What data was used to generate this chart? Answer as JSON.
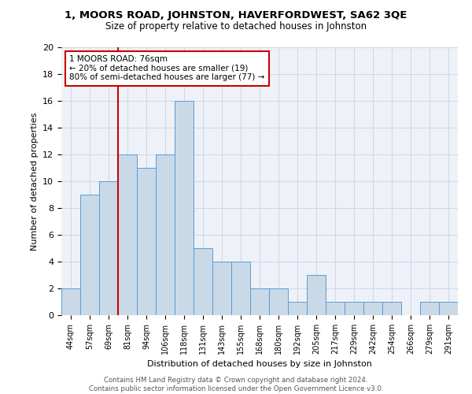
{
  "title": "1, MOORS ROAD, JOHNSTON, HAVERFORDWEST, SA62 3QE",
  "subtitle": "Size of property relative to detached houses in Johnston",
  "xlabel": "Distribution of detached houses by size in Johnston",
  "ylabel": "Number of detached properties",
  "categories": [
    "44sqm",
    "57sqm",
    "69sqm",
    "81sqm",
    "94sqm",
    "106sqm",
    "118sqm",
    "131sqm",
    "143sqm",
    "155sqm",
    "168sqm",
    "180sqm",
    "192sqm",
    "205sqm",
    "217sqm",
    "229sqm",
    "242sqm",
    "254sqm",
    "266sqm",
    "279sqm",
    "291sqm"
  ],
  "values": [
    2,
    9,
    10,
    12,
    11,
    12,
    16,
    5,
    4,
    4,
    2,
    2,
    1,
    3,
    1,
    1,
    1,
    1,
    0,
    1,
    1
  ],
  "bar_color": "#c9d9e8",
  "bar_edge_color": "#5b9bd5",
  "vline_x": 2.5,
  "vline_color": "#cc0000",
  "annotation_line1": "1 MOORS ROAD: 76sqm",
  "annotation_line2": "← 20% of detached houses are smaller (19)",
  "annotation_line3": "80% of semi-detached houses are larger (77) →",
  "annotation_box_edgecolor": "#cc0000",
  "ylim": [
    0,
    20
  ],
  "yticks": [
    0,
    2,
    4,
    6,
    8,
    10,
    12,
    14,
    16,
    18,
    20
  ],
  "footer_line1": "Contains HM Land Registry data © Crown copyright and database right 2024.",
  "footer_line2": "Contains public sector information licensed under the Open Government Licence v3.0.",
  "grid_color": "#d0d8e8",
  "background_color": "#eef2f8"
}
